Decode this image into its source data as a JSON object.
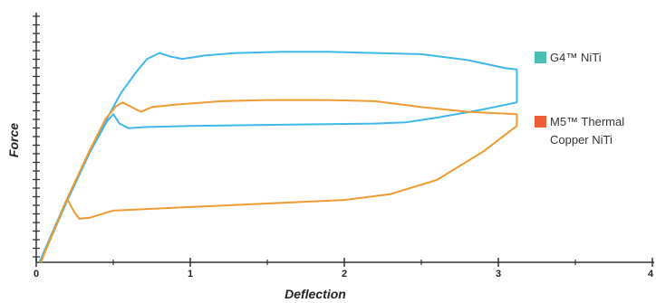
{
  "chart_data": {
    "type": "line",
    "xlabel": "Deflection",
    "ylabel": "Force",
    "xlim": [
      0,
      4
    ],
    "ylim": [
      0,
      10
    ],
    "x_ticks": [
      "0",
      "1",
      "2",
      "3",
      "4"
    ],
    "grid": false,
    "legend_position": "right",
    "series": [
      {
        "name": "G4™ NiTi",
        "color": "#3fb7e8",
        "swatch": "#49bfb4",
        "points": [
          [
            0.02,
            0.0
          ],
          [
            0.2,
            2.7
          ],
          [
            0.4,
            5.4
          ],
          [
            0.55,
            7.2
          ],
          [
            0.65,
            8.1
          ],
          [
            0.72,
            8.65
          ],
          [
            0.8,
            8.9
          ],
          [
            0.87,
            8.75
          ],
          [
            0.95,
            8.65
          ],
          [
            1.1,
            8.8
          ],
          [
            1.3,
            8.9
          ],
          [
            1.6,
            8.95
          ],
          [
            1.9,
            8.95
          ],
          [
            2.2,
            8.9
          ],
          [
            2.5,
            8.85
          ],
          [
            2.8,
            8.6
          ],
          [
            3.05,
            8.25
          ],
          [
            3.12,
            8.2
          ],
          [
            3.12,
            6.8
          ],
          [
            2.9,
            6.5
          ],
          [
            2.6,
            6.15
          ],
          [
            2.4,
            5.95
          ],
          [
            2.2,
            5.9
          ],
          [
            1.6,
            5.85
          ],
          [
            1.0,
            5.8
          ],
          [
            0.7,
            5.75
          ],
          [
            0.6,
            5.7
          ],
          [
            0.54,
            5.9
          ],
          [
            0.5,
            6.3
          ],
          [
            0.46,
            6.0
          ],
          [
            0.35,
            4.7
          ],
          [
            0.2,
            2.6
          ],
          [
            0.04,
            0.2
          ]
        ]
      },
      {
        "name": "M5™ Thermal Copper NiTi",
        "color": "#f09a30",
        "swatch": "#ec5e35",
        "points": [
          [
            0.03,
            0.0
          ],
          [
            0.2,
            2.7
          ],
          [
            0.35,
            4.8
          ],
          [
            0.45,
            6.1
          ],
          [
            0.52,
            6.65
          ],
          [
            0.56,
            6.8
          ],
          [
            0.62,
            6.6
          ],
          [
            0.68,
            6.4
          ],
          [
            0.75,
            6.6
          ],
          [
            0.9,
            6.7
          ],
          [
            1.2,
            6.85
          ],
          [
            1.5,
            6.9
          ],
          [
            1.9,
            6.9
          ],
          [
            2.2,
            6.85
          ],
          [
            2.5,
            6.6
          ],
          [
            2.8,
            6.4
          ],
          [
            3.12,
            6.3
          ],
          [
            3.12,
            5.8
          ],
          [
            2.9,
            4.7
          ],
          [
            2.6,
            3.5
          ],
          [
            2.3,
            2.9
          ],
          [
            2.0,
            2.65
          ],
          [
            1.5,
            2.5
          ],
          [
            1.0,
            2.35
          ],
          [
            0.5,
            2.2
          ],
          [
            0.35,
            1.9
          ],
          [
            0.28,
            1.85
          ],
          [
            0.25,
            2.1
          ],
          [
            0.2,
            2.7
          ],
          [
            0.15,
            1.9
          ],
          [
            0.06,
            0.5
          ],
          [
            0.03,
            0.0
          ]
        ]
      }
    ]
  },
  "legend": {
    "g4_label": "G4™ NiTi",
    "m5_label_line1": "M5™ Thermal",
    "m5_label_line2": "Copper NiTi"
  }
}
